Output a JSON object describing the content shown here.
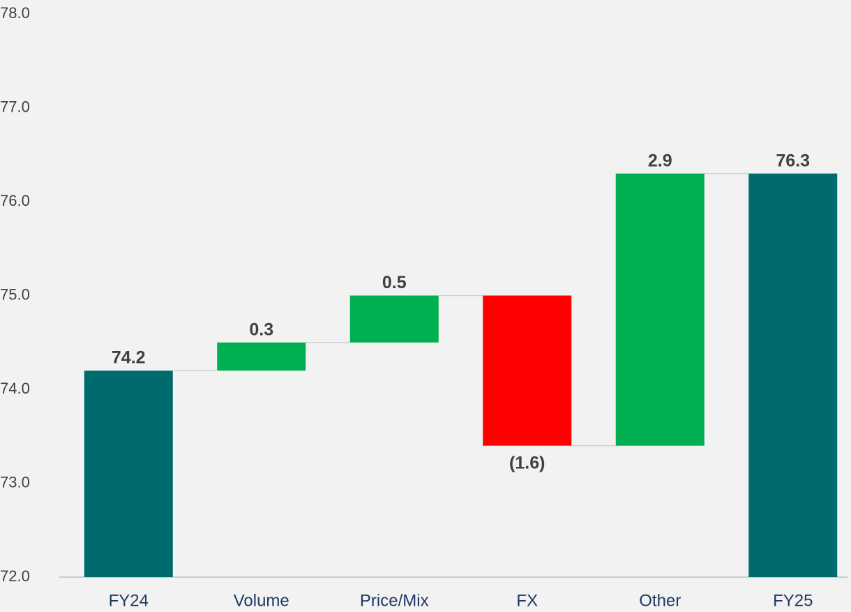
{
  "chart_data": {
    "type": "waterfall",
    "categories": [
      "FY24",
      "Volume",
      "Price/Mix",
      "FX",
      "Other",
      "FY25"
    ],
    "values": [
      74.2,
      0.3,
      0.5,
      -1.6,
      2.9,
      76.3
    ],
    "value_labels": [
      "74.2",
      "0.3",
      "0.5",
      "(1.6)",
      "2.9",
      "76.3"
    ],
    "colors": {
      "total": "#006b6e",
      "increase": "#00b050",
      "decrease": "#ff0000"
    },
    "ylim": [
      72,
      78
    ],
    "yticks": [
      {
        "value": 72,
        "label": "72.0"
      },
      {
        "value": 73,
        "label": "73.0"
      },
      {
        "value": 74,
        "label": "74.0"
      },
      {
        "value": 75,
        "label": "75.0"
      },
      {
        "value": 76,
        "label": "76.0"
      },
      {
        "value": 77,
        "label": "77.0"
      },
      {
        "value": 78,
        "label": "78.0"
      }
    ],
    "grid": false
  }
}
